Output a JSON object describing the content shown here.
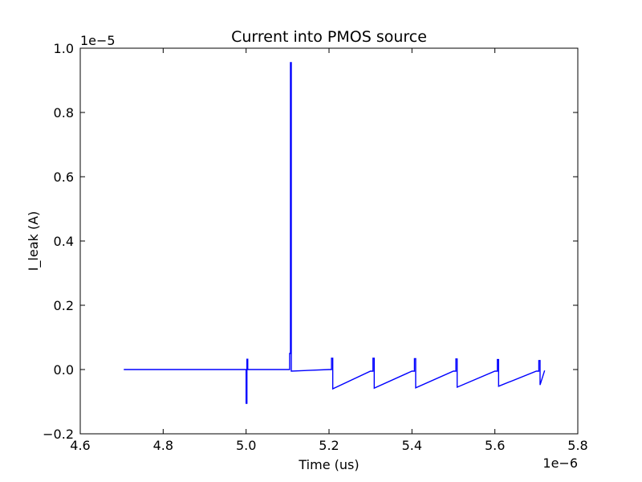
{
  "chart_data": {
    "type": "line",
    "title": "Current into PMOS source",
    "xlabel": "Time (us)",
    "ylabel": "I_leak (A)",
    "x_offset_label": "1e−6",
    "y_offset_label": "1e−5",
    "xlim": [
      4.6,
      5.8
    ],
    "ylim": [
      -0.2,
      1.0
    ],
    "x_ticks": [
      4.6,
      4.8,
      5.0,
      5.2,
      5.4,
      5.6,
      5.8
    ],
    "x_tick_labels": [
      "4.6",
      "4.8",
      "5.0",
      "5.2",
      "5.4",
      "5.6",
      "5.8"
    ],
    "y_ticks": [
      -0.2,
      0.0,
      0.2,
      0.4,
      0.6,
      0.8,
      1.0
    ],
    "y_tick_labels": [
      "−0.2",
      "0.0",
      "0.2",
      "0.4",
      "0.6",
      "0.8",
      "1.0"
    ],
    "grid": false,
    "legend": "none",
    "line_color": "#0000ff",
    "series": [
      {
        "x": [
          4.705,
          5.0,
          5.0,
          5.002,
          5.002,
          5.004,
          5.004,
          5.1,
          5.105,
          5.105,
          5.107,
          5.107,
          5.109,
          5.109,
          5.2,
          5.206,
          5.206,
          5.209,
          5.209,
          5.3,
          5.306,
          5.306,
          5.309,
          5.309,
          5.4,
          5.406,
          5.406,
          5.409,
          5.409,
          5.5,
          5.506,
          5.506,
          5.509,
          5.509,
          5.6,
          5.606,
          5.606,
          5.609,
          5.609,
          5.7,
          5.706,
          5.706,
          5.709,
          5.709,
          5.72
        ],
        "y": [
          0.0,
          0.0,
          -0.105,
          -0.105,
          0.032,
          0.032,
          0.0,
          0.0,
          0.0,
          0.05,
          0.05,
          0.955,
          0.955,
          -0.005,
          0.0,
          0.0,
          0.035,
          0.035,
          -0.06,
          -0.005,
          -0.005,
          0.035,
          0.035,
          -0.058,
          -0.005,
          -0.005,
          0.034,
          0.034,
          -0.057,
          -0.005,
          -0.005,
          0.033,
          0.033,
          -0.055,
          -0.005,
          -0.005,
          0.031,
          0.031,
          -0.052,
          -0.005,
          -0.005,
          0.028,
          0.028,
          -0.048,
          -0.003
        ]
      }
    ]
  }
}
